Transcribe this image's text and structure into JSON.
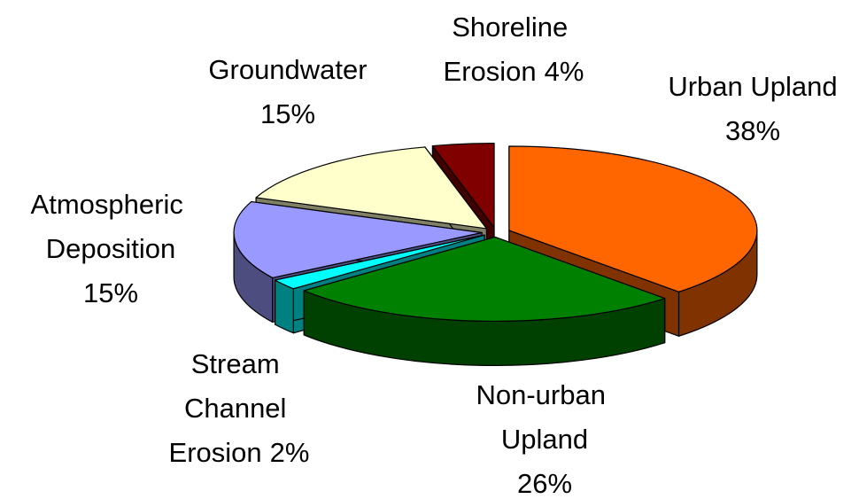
{
  "chart_data": {
    "type": "pie",
    "categories": [
      "Urban Upland",
      "Non-urban Upland",
      "Stream Channel Erosion",
      "Atmospheric Deposition",
      "Groundwater",
      "Shoreline Erosion"
    ],
    "values": [
      38,
      26,
      2,
      15,
      15,
      4
    ],
    "value_labels": [
      "38%",
      "26%",
      "2%",
      "15%",
      "15%",
      "4%"
    ],
    "colors": [
      "#ff6600",
      "#008000",
      "#00ffff",
      "#9999ff",
      "#ffffcc",
      "#800000"
    ],
    "side_colors": [
      "#803300",
      "#004000",
      "#008080",
      "#4d4d80",
      "#808066",
      "#400000"
    ]
  }
}
